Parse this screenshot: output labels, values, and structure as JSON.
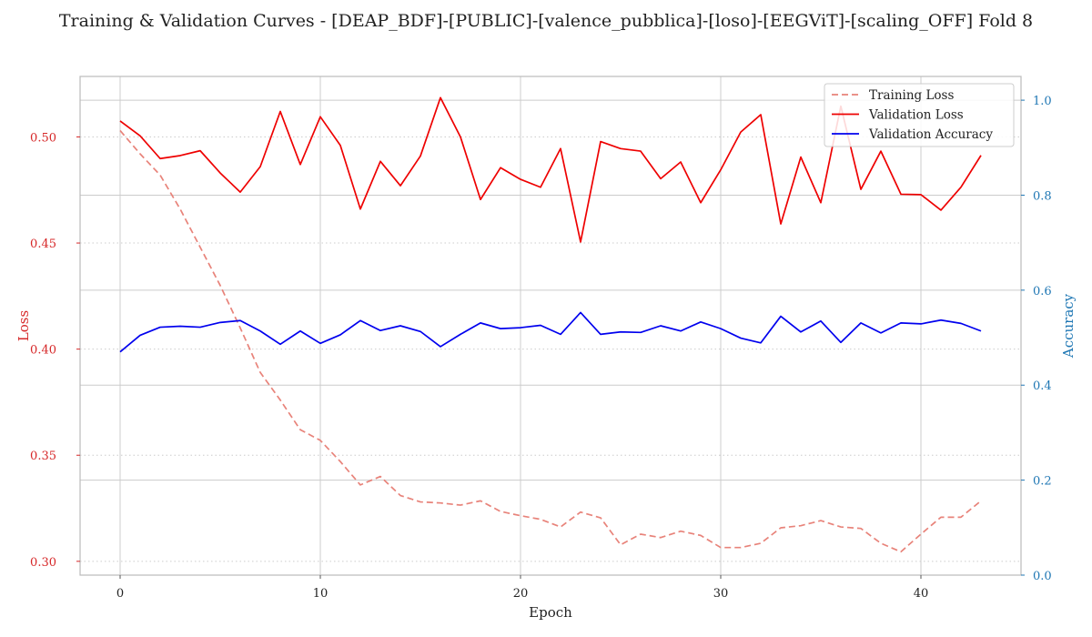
{
  "chart_data": {
    "type": "line",
    "title": "Training & Validation Curves - [DEAP_BDF]-[PUBLIC]-[valence_pubblica]-[loso]-[EEGViT]-[scaling_OFF] Fold 8",
    "xlabel": "Epoch",
    "ylabel_left": "Loss",
    "ylabel_right": "Accuracy",
    "xlim": [
      -2,
      45
    ],
    "ylim_left": [
      0.2935,
      0.5285
    ],
    "ylim_right": [
      0.0,
      1.05
    ],
    "x_ticks": [
      0,
      10,
      20,
      30,
      40
    ],
    "y_ticks_left": [
      0.3,
      0.35,
      0.4,
      0.45,
      0.5
    ],
    "y_ticks_right": [
      0.0,
      0.2,
      0.4,
      0.6,
      0.8,
      1.0
    ],
    "legend_position": "top-right",
    "grid": true,
    "colors": {
      "training_loss": "#e8837a",
      "validation_loss": "#ee0000",
      "validation_accuracy": "#0000ee",
      "left_axis": "#d62728",
      "right_axis": "#1f77b4",
      "grid": "#cccccc",
      "frame": "#bbbbbb"
    },
    "x": [
      0,
      1,
      2,
      3,
      4,
      5,
      6,
      7,
      8,
      9,
      10,
      11,
      12,
      13,
      14,
      15,
      16,
      17,
      18,
      19,
      20,
      21,
      22,
      23,
      24,
      25,
      26,
      27,
      28,
      29,
      30,
      31,
      32,
      33,
      34,
      35,
      36,
      37,
      38,
      39,
      40,
      41,
      42,
      43
    ],
    "series": [
      {
        "name": "Training Loss",
        "axis": "left",
        "style": "dashed",
        "values": [
          0.503,
          0.492,
          0.482,
          0.466,
          0.448,
          0.43,
          0.41,
          0.389,
          0.376,
          0.362,
          0.357,
          0.347,
          0.336,
          0.34,
          0.331,
          0.328,
          0.3275,
          0.3265,
          0.3285,
          0.3235,
          0.3215,
          0.3198,
          0.3162,
          0.3232,
          0.3205,
          0.3078,
          0.3128,
          0.3112,
          0.3142,
          0.3122,
          0.3065,
          0.3065,
          0.3085,
          0.3158,
          0.3168,
          0.3192,
          0.3162,
          0.3155,
          0.3085,
          0.3045,
          0.3128,
          0.3208,
          0.3208,
          0.3285
        ]
      },
      {
        "name": "Validation Loss",
        "axis": "left",
        "style": "solid",
        "values": [
          0.5075,
          0.5005,
          0.4898,
          0.4912,
          0.4935,
          0.483,
          0.474,
          0.486,
          0.512,
          0.487,
          0.5095,
          0.496,
          0.466,
          0.4885,
          0.477,
          0.491,
          0.5185,
          0.5,
          0.4705,
          0.4855,
          0.48,
          0.4763,
          0.4945,
          0.4505,
          0.4978,
          0.4945,
          0.4933,
          0.4803,
          0.4882,
          0.469,
          0.4845,
          0.5023,
          0.5105,
          0.459,
          0.4905,
          0.469,
          0.5145,
          0.4753,
          0.4933,
          0.473,
          0.4728,
          0.4655,
          0.4763,
          0.4913
        ]
      },
      {
        "name": "Validation Accuracy",
        "axis": "right",
        "style": "solid",
        "values": [
          0.47,
          0.505,
          0.522,
          0.524,
          0.522,
          0.532,
          0.536,
          0.514,
          0.486,
          0.514,
          0.488,
          0.506,
          0.536,
          0.515,
          0.525,
          0.513,
          0.481,
          0.507,
          0.531,
          0.519,
          0.521,
          0.526,
          0.507,
          0.553,
          0.507,
          0.512,
          0.511,
          0.525,
          0.514,
          0.533,
          0.519,
          0.499,
          0.489,
          0.545,
          0.512,
          0.535,
          0.49,
          0.531,
          0.51,
          0.531,
          0.529,
          0.537,
          0.53,
          0.514
        ]
      }
    ]
  }
}
